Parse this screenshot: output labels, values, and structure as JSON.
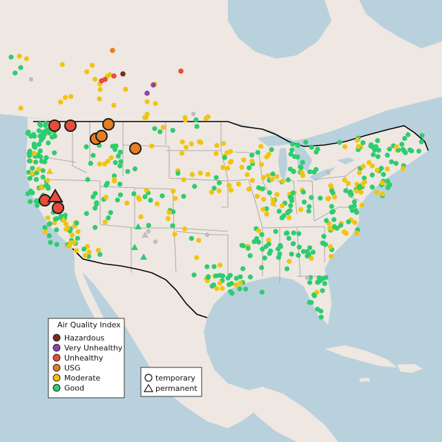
{
  "legend": {
    "title": "Air Quality Index",
    "categories": [
      {
        "label": "Hazardous",
        "color": "#7e2a1e"
      },
      {
        "label": "Very Unhealthy",
        "color": "#8e44ad"
      },
      {
        "label": "Unhealthy",
        "color": "#e74c3c"
      },
      {
        "label": "USG",
        "color": "#e67e22"
      },
      {
        "label": "Moderate",
        "color": "#f1c40f"
      },
      {
        "label": "Good",
        "color": "#2ecc71"
      }
    ]
  },
  "monitor_legend": {
    "temporary": "temporary",
    "permanent": "permanent"
  },
  "colors": {
    "land": "#efe7e1",
    "water": "#b8d1dd",
    "state_border": "#9a9a9a",
    "country_border": "#000000",
    "no_data": "#bdbdbd"
  }
}
